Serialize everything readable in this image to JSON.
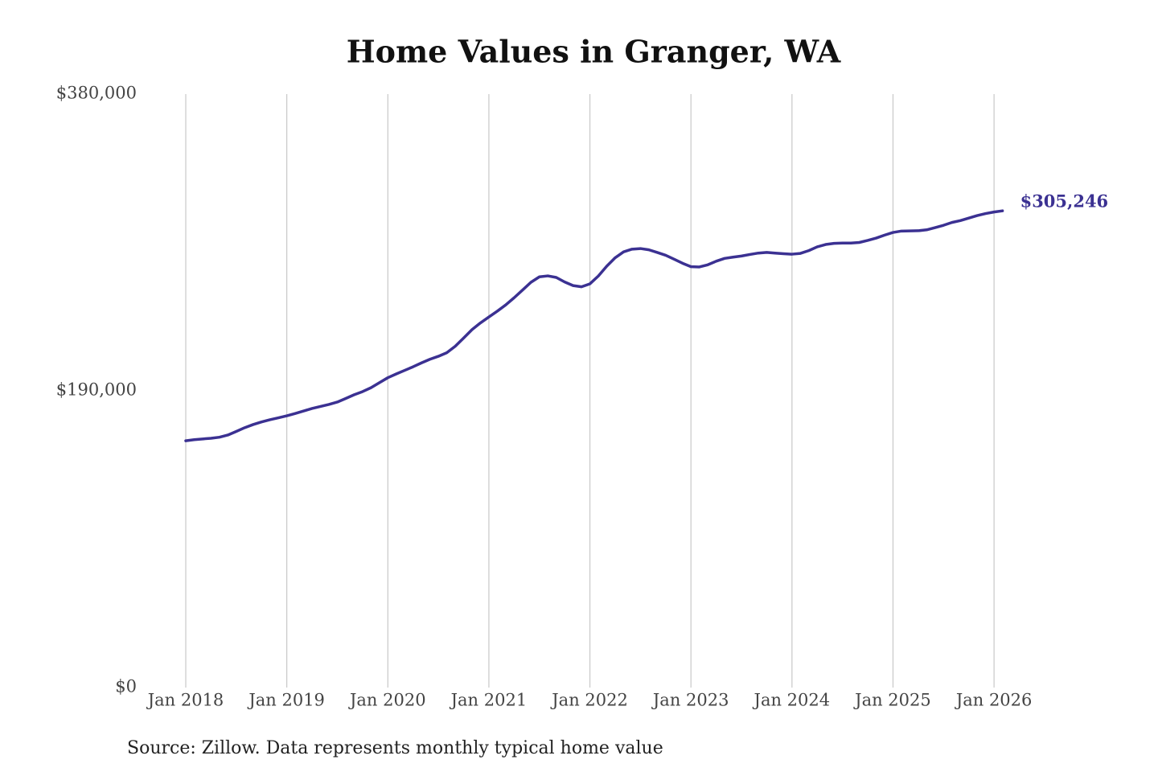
{
  "chart_data": {
    "type": "line",
    "title": "Home Values in Granger, WA",
    "note": "Source: Zillow. Data represents monthly typical home value",
    "color": "#3b3192",
    "x": [
      "Jan 2018",
      "Feb 2018",
      "Mar 2018",
      "Apr 2018",
      "May 2018",
      "Jun 2018",
      "Jul 2018",
      "Aug 2018",
      "Sep 2018",
      "Oct 2018",
      "Nov 2018",
      "Dec 2018",
      "Jan 2019",
      "Feb 2019",
      "Mar 2019",
      "Apr 2019",
      "May 2019",
      "Jun 2019",
      "Jul 2019",
      "Aug 2019",
      "Sep 2019",
      "Oct 2019",
      "Nov 2019",
      "Dec 2019",
      "Jan 2020",
      "Feb 2020",
      "Mar 2020",
      "Apr 2020",
      "May 2020",
      "Jun 2020",
      "Jul 2020",
      "Aug 2020",
      "Sep 2020",
      "Oct 2020",
      "Nov 2020",
      "Dec 2020",
      "Jan 2021",
      "Feb 2021",
      "Mar 2021",
      "Apr 2021",
      "May 2021",
      "Jun 2021",
      "Jul 2021",
      "Aug 2021",
      "Sep 2021",
      "Oct 2021",
      "Nov 2021",
      "Dec 2021",
      "Jan 2022",
      "Feb 2022",
      "Mar 2022",
      "Apr 2022",
      "May 2022",
      "Jun 2022",
      "Jul 2022",
      "Aug 2022",
      "Sep 2022",
      "Oct 2022",
      "Nov 2022",
      "Dec 2022",
      "Jan 2023",
      "Feb 2023",
      "Mar 2023",
      "Apr 2023",
      "May 2023",
      "Jun 2023",
      "Jul 2023",
      "Aug 2023",
      "Sep 2023",
      "Oct 2023",
      "Nov 2023",
      "Dec 2023",
      "Jan 2024",
      "Feb 2024",
      "Mar 2024",
      "Apr 2024",
      "May 2024",
      "Jun 2024",
      "Jul 2024",
      "Aug 2024",
      "Sep 2024",
      "Oct 2024",
      "Nov 2024",
      "Dec 2024",
      "Jan 2025",
      "Feb 2025",
      "Mar 2025",
      "Apr 2025",
      "May 2025",
      "Jun 2025",
      "Jul 2025",
      "Aug 2025",
      "Sep 2025",
      "Oct 2025",
      "Nov 2025",
      "Dec 2025",
      "Jan 2026",
      "Feb 2026"
    ],
    "values": [
      158000,
      158700,
      159200,
      159600,
      160300,
      161700,
      164000,
      166400,
      168400,
      170100,
      171500,
      172700,
      174000,
      175500,
      177100,
      178700,
      180000,
      181300,
      182800,
      185100,
      187500,
      189500,
      192000,
      195200,
      198400,
      200800,
      203100,
      205400,
      207900,
      210200,
      212100,
      214400,
      218500,
      223800,
      229200,
      233500,
      237300,
      241000,
      245000,
      249600,
      254500,
      259500,
      263000,
      263600,
      262600,
      259700,
      257400,
      256600,
      258500,
      263500,
      269800,
      275200,
      279000,
      280700,
      281100,
      280300,
      278600,
      276800,
      274300,
      271700,
      269500,
      269300,
      270700,
      273000,
      274800,
      275600,
      276300,
      277300,
      278200,
      278600,
      278200,
      277800,
      277500,
      278000,
      279800,
      282200,
      283700,
      284400,
      284600,
      284600,
      285000,
      286300,
      287800,
      289700,
      291400,
      292300,
      292400,
      292500,
      293100,
      294500,
      296000,
      297800,
      299000,
      300600,
      302200,
      303500,
      304500,
      305246
    ],
    "value_labels": [
      null,
      null,
      null,
      null,
      null,
      null,
      null,
      null,
      null,
      null,
      null,
      null,
      null,
      null,
      null,
      null,
      null,
      null,
      null,
      null,
      null,
      null,
      null,
      null,
      null,
      null,
      null,
      null,
      null,
      null,
      null,
      null,
      null,
      null,
      null,
      null,
      null,
      null,
      null,
      null,
      null,
      null,
      null,
      null,
      null,
      null,
      null,
      null,
      null,
      null,
      null,
      null,
      null,
      null,
      null,
      null,
      null,
      null,
      null,
      null,
      null,
      null,
      null,
      null,
      null,
      null,
      null,
      null,
      null,
      null,
      null,
      null,
      null,
      null,
      null,
      null,
      null,
      null,
      null,
      null,
      null,
      null,
      null,
      null,
      null,
      null,
      null,
      null,
      null,
      null,
      null,
      null,
      null,
      null,
      null,
      null,
      null,
      "$305,246"
    ],
    "xticks": [
      "Jan 2018",
      "Jan 2019",
      "Jan 2020",
      "Jan 2021",
      "Jan 2022",
      "Jan 2023",
      "Jan 2024",
      "Jan 2025",
      "Jan 2026"
    ],
    "ylim": [
      0,
      380000
    ],
    "yticks": [
      {
        "value": 0,
        "label": "$0"
      },
      {
        "value": 190000,
        "label": "$190,000"
      },
      {
        "value": 380000,
        "label": "$380,000"
      }
    ],
    "grid": true
  }
}
